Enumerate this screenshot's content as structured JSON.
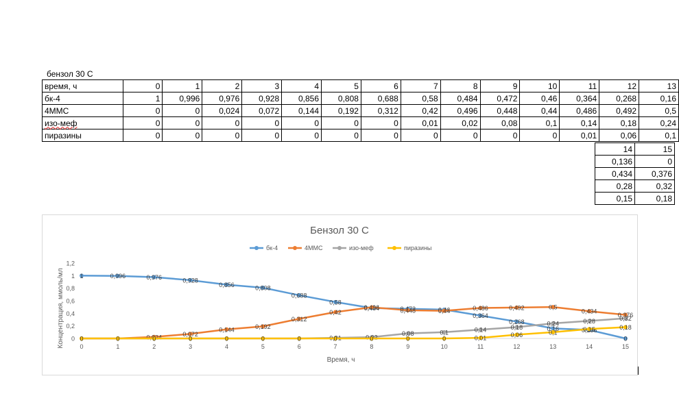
{
  "sheet_title": "бензол 30 С",
  "table": {
    "rows": [
      {
        "label": "время, ч",
        "values": [
          "0",
          "1",
          "2",
          "3",
          "4",
          "5",
          "6",
          "7",
          "8",
          "9",
          "10",
          "11",
          "12",
          "13"
        ]
      },
      {
        "label": "бк-4",
        "values": [
          "1",
          "0,996",
          "0,976",
          "0,928",
          "0,856",
          "0,808",
          "0,688",
          "0,58",
          "0,484",
          "0,472",
          "0,46",
          "0,364",
          "0,268",
          "0,16"
        ]
      },
      {
        "label": "4ММС",
        "values": [
          "0",
          "0",
          "0,024",
          "0,072",
          "0,144",
          "0,192",
          "0,312",
          "0,42",
          "0,496",
          "0,448",
          "0,44",
          "0,486",
          "0,492",
          "0,5"
        ]
      },
      {
        "label": "изо-меф",
        "values": [
          "0",
          "0",
          "0",
          "0",
          "0",
          "0",
          "0",
          "0,01",
          "0,02",
          "0,08",
          "0,1",
          "0,14",
          "0,18",
          "0,24"
        ]
      },
      {
        "label": "пиразины",
        "values": [
          "0",
          "0",
          "0",
          "0",
          "0",
          "0",
          "0",
          "0",
          "0",
          "0",
          "0",
          "0,01",
          "0,06",
          "0,1"
        ]
      }
    ],
    "extension": [
      [
        "14",
        "15"
      ],
      [
        "0,136",
        "0"
      ],
      [
        "0,434",
        "0,376"
      ],
      [
        "0,28",
        "0,32"
      ],
      [
        "0,15",
        "0,18"
      ]
    ]
  },
  "chart_data": {
    "type": "line",
    "title": "Бензол 30 С",
    "xlabel": "Время, ч",
    "ylabel": "Концентрация, ммоль/мл",
    "x": [
      0,
      1,
      2,
      3,
      4,
      5,
      6,
      7,
      8,
      9,
      10,
      11,
      12,
      13,
      14,
      15
    ],
    "xlim": [
      0,
      15
    ],
    "ylim": [
      0,
      1.2
    ],
    "y_ticks": [
      "0",
      "0,2",
      "0,4",
      "0,6",
      "0,8",
      "1",
      "1,2"
    ],
    "legend_position": "top",
    "grid": false,
    "series": [
      {
        "name": "бк-4",
        "color": "#5B9BD5",
        "values": [
          1,
          0.996,
          0.976,
          0.928,
          0.856,
          0.808,
          0.688,
          0.58,
          0.484,
          0.472,
          0.46,
          0.364,
          0.268,
          0.16,
          0.136,
          0
        ],
        "labels": [
          "1",
          "0,996",
          "0,976",
          "0,928",
          "0,856",
          "0,808",
          "0,688",
          "0,58",
          "0,484",
          "0,472",
          "0,46",
          "0,364",
          "0,268",
          "0,16",
          "0,136",
          "0"
        ]
      },
      {
        "name": "4ММС",
        "color": "#ED7D31",
        "values": [
          0,
          0,
          0.024,
          0.072,
          0.144,
          0.192,
          0.312,
          0.42,
          0.496,
          0.448,
          0.44,
          0.486,
          0.492,
          0.5,
          0.434,
          0.376
        ],
        "labels": [
          "0",
          "0",
          "0,024",
          "0,072",
          "0,144",
          "0,192",
          "0,312",
          "0,42",
          "0,496",
          "0,448",
          "0,44",
          "0,486",
          "0,492",
          "0,5",
          "0,434",
          "0,376"
        ]
      },
      {
        "name": "изо-меф",
        "color": "#A5A5A5",
        "values": [
          0,
          0,
          0,
          0,
          0,
          0,
          0,
          0.01,
          0.02,
          0.08,
          0.1,
          0.14,
          0.18,
          0.24,
          0.28,
          0.32
        ],
        "labels": [
          "0",
          "0",
          "0",
          "0",
          "0",
          "0",
          "0",
          "0,01",
          "0,02",
          "0,08",
          "0,1",
          "0,14",
          "0,18",
          "0,24",
          "0,28",
          "0,32"
        ]
      },
      {
        "name": "пиразины",
        "color": "#FFC000",
        "values": [
          0,
          0,
          0,
          0,
          0,
          0,
          0,
          0,
          0,
          0,
          0,
          0.01,
          0.06,
          0.1,
          0.15,
          0.18
        ],
        "labels": [
          "0",
          "0",
          "0",
          "0",
          "0",
          "0",
          "0",
          "0",
          "0",
          "0",
          "0",
          "0,01",
          "0,06",
          "0,1",
          "0,15",
          "0,18"
        ]
      }
    ]
  }
}
